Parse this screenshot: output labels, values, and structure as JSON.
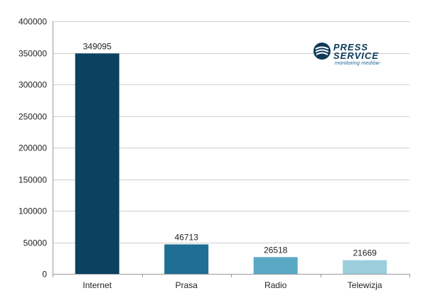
{
  "chart_data": {
    "type": "bar",
    "categories": [
      "Internet",
      "Prasa",
      "Radio",
      "Telewizja"
    ],
    "values": [
      349095,
      46713,
      26518,
      21669
    ],
    "data_labels": [
      "349095",
      "46713",
      "26518",
      "21669"
    ],
    "y_ticks": [
      "0",
      "50000",
      "100000",
      "150000",
      "200000",
      "250000",
      "300000",
      "350000",
      "400000"
    ],
    "ylim": [
      0,
      400000
    ],
    "grid": true,
    "legend": "none",
    "bar_colors": [
      "#0b4260",
      "#1e6e96",
      "#5aa7c4",
      "#9ccddd"
    ]
  },
  "logo": {
    "line1": "PRESS",
    "line2": "SERVICE",
    "tagline": "monitoring mediów",
    "color": "#0d3a5a"
  }
}
